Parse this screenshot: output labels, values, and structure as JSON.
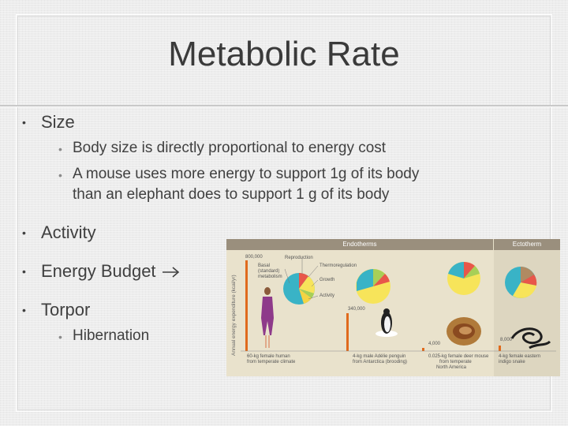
{
  "slide": {
    "title": "Metabolic Rate",
    "bullets": [
      {
        "text": "Size",
        "sub": [
          "Body size is directly proportional to energy cost",
          "A mouse uses more energy to support 1g of its body",
          "than an elephant does to support 1 g of its body"
        ]
      },
      {
        "text": "Activity"
      },
      {
        "text": "Energy Budget"
      },
      {
        "text": "Torpor",
        "sub": [
          "Hibernation"
        ]
      }
    ],
    "bullet_glyph": "•"
  },
  "figure": {
    "header_endotherms": "Endotherms",
    "header_ectotherm": "Ectotherm",
    "y_axis_label": "Annual energy expenditure (kcal/yr)",
    "value_human": "800,000",
    "legend": {
      "reproduction": "Reproduction",
      "basal": "Basal",
      "standard": "(standard)",
      "metabolism": "metabolism",
      "thermoregulation": "Thermoregulation",
      "growth": "Growth",
      "activity": "Activity"
    },
    "values": {
      "penguin": "340,000",
      "mouse": "4,000",
      "snake": "8,000"
    },
    "captions": {
      "human": [
        "60-kg female human",
        "from temperate climate"
      ],
      "penguin": [
        "4-kg male Adélie penguin",
        "from Antarctica (brooding)"
      ],
      "mouse": [
        "0.025-kg female deer mouse",
        "from temperate",
        "North America"
      ],
      "snake": [
        "4-kg female eastern",
        "indigo snake"
      ]
    },
    "colors": {
      "basal": "#39b3c6",
      "reproduction": "#e8574a",
      "thermoregulation": "#f7e45a",
      "growth": "#a8cf57",
      "activity": "#f4d443",
      "bar": "#e06a1c",
      "snake_tan": "#b08a62"
    }
  }
}
